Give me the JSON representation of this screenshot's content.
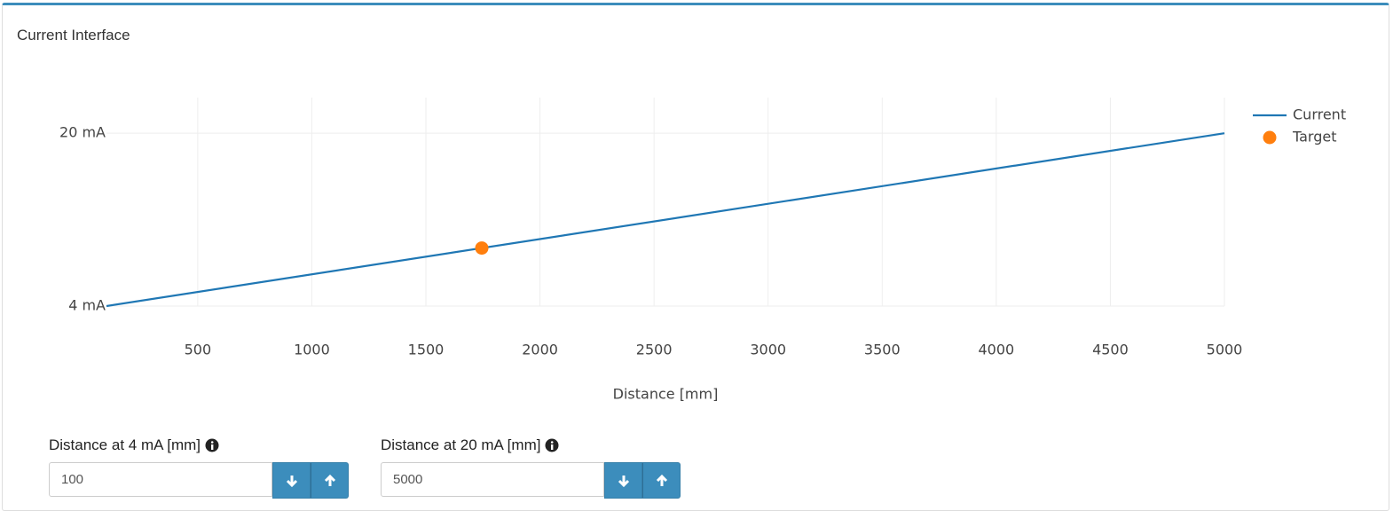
{
  "panel": {
    "title": "Current Interface"
  },
  "chart_data": {
    "type": "line",
    "x_label": "Distance [mm]",
    "xlim": [
      100,
      5000
    ],
    "xticks": [
      500,
      1000,
      1500,
      2000,
      2500,
      3000,
      3500,
      4000,
      4500,
      5000
    ],
    "ylim": [
      4,
      23.3
    ],
    "yticks": [
      {
        "value": 4,
        "label": "4 mA"
      },
      {
        "value": 20,
        "label": "20 mA"
      }
    ],
    "grid": true,
    "legend": "top-right",
    "series": [
      {
        "name": "Current",
        "type": "line",
        "color": "#1f77b4",
        "x": [
          100,
          5000
        ],
        "values": [
          4,
          20
        ]
      },
      {
        "name": "Target",
        "type": "scatter",
        "color": "#ff7f0e",
        "x": [
          1745
        ],
        "values": [
          9.37
        ]
      }
    ]
  },
  "form": {
    "fields": [
      {
        "label": "Distance at 4 mA [mm]",
        "value": "100"
      },
      {
        "label": "Distance at 20 mA [mm]",
        "value": "5000"
      }
    ]
  }
}
